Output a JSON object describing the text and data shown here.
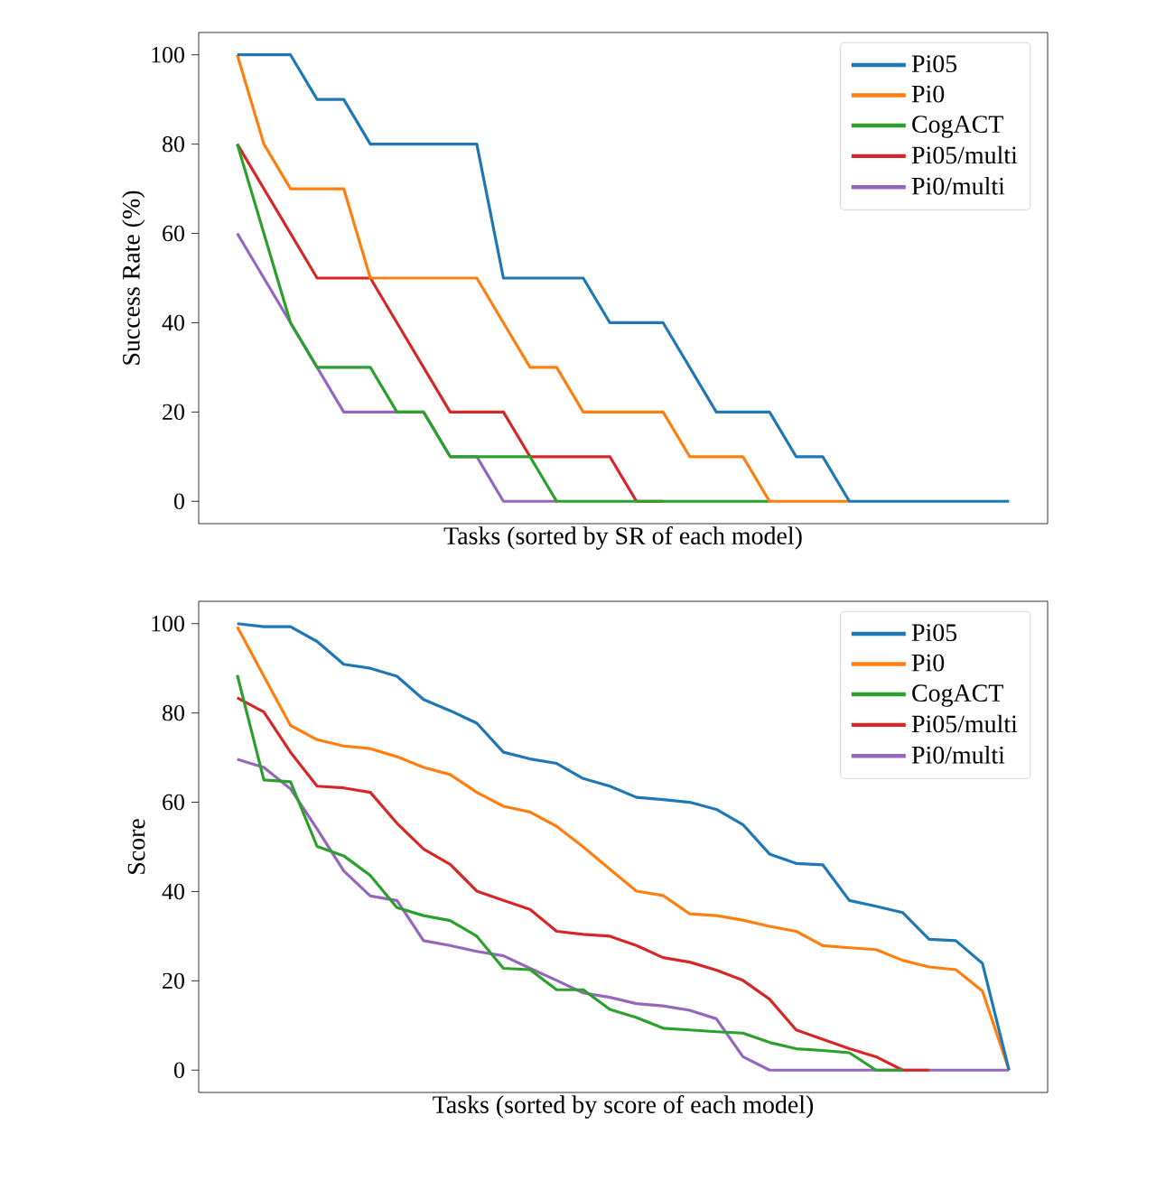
{
  "chart_data": [
    {
      "type": "line",
      "xlabel": "Tasks (sorted by SR of each model)",
      "ylabel": "Success Rate (%)",
      "categories": [
        null,
        null,
        null,
        null,
        null,
        null,
        null,
        null,
        null,
        null,
        null,
        null,
        null,
        null,
        null,
        null,
        null,
        null,
        null,
        null,
        null,
        null,
        null,
        null,
        null,
        null,
        null,
        null,
        null,
        null
      ],
      "ylim": [
        -5,
        105
      ],
      "yticks": [
        0,
        20,
        40,
        60,
        80,
        100
      ],
      "tick_labels": "y",
      "legend": "top right",
      "series": [
        {
          "name": "Pi05",
          "color": "#1f77b4",
          "values": [
            100,
            100,
            100,
            90,
            90,
            80,
            80,
            80,
            80,
            80,
            50,
            50,
            50,
            50,
            40,
            40,
            40,
            30,
            20,
            20,
            20,
            10,
            10,
            0,
            0,
            0,
            0,
            0,
            0,
            0
          ]
        },
        {
          "name": "Pi0",
          "color": "#ff7f0e",
          "values": [
            100,
            80,
            70,
            70,
            70,
            50,
            50,
            50,
            50,
            50,
            40,
            30,
            30,
            20,
            20,
            20,
            20,
            10,
            10,
            10,
            0,
            0,
            0,
            0,
            null,
            null,
            null,
            null,
            null,
            null
          ]
        },
        {
          "name": "CogACT",
          "color": "#2ca02c",
          "values": [
            80,
            60,
            40,
            30,
            30,
            30,
            20,
            20,
            10,
            10,
            10,
            10,
            0,
            0,
            0,
            0,
            0,
            0,
            0,
            0,
            0,
            null,
            null,
            null,
            null,
            null,
            null,
            null,
            null,
            null
          ]
        },
        {
          "name": "Pi05/multi",
          "color": "#d62728",
          "values": [
            80,
            70,
            60,
            50,
            50,
            50,
            40,
            30,
            20,
            20,
            20,
            10,
            10,
            10,
            10,
            0,
            0,
            null,
            null,
            null,
            null,
            null,
            null,
            null,
            null,
            null,
            null,
            null,
            null,
            null
          ]
        },
        {
          "name": "Pi0/multi",
          "color": "#9467bd",
          "values": [
            60,
            50,
            40,
            30,
            20,
            20,
            20,
            20,
            10,
            10,
            0,
            0,
            0,
            null,
            null,
            null,
            null,
            null,
            null,
            null,
            null,
            null,
            null,
            null,
            null,
            null,
            null,
            null,
            null,
            null
          ]
        }
      ]
    },
    {
      "type": "line",
      "xlabel": "Tasks (sorted by score of each model)",
      "ylabel": "Score",
      "categories": [
        null,
        null,
        null,
        null,
        null,
        null,
        null,
        null,
        null,
        null,
        null,
        null,
        null,
        null,
        null,
        null,
        null,
        null,
        null,
        null,
        null,
        null,
        null,
        null,
        null,
        null,
        null,
        null,
        null,
        null
      ],
      "ylim": [
        -5,
        105
      ],
      "yticks": [
        0,
        20,
        40,
        60,
        80,
        100
      ],
      "tick_labels": "y",
      "legend": "top right",
      "series": [
        {
          "name": "Pi05",
          "color": "#1f77b4",
          "values": [
            100,
            99.3,
            99.3,
            96,
            90.9,
            90,
            88.2,
            83,
            80.5,
            77.7,
            71.2,
            69.7,
            68.7,
            65.3,
            63.6,
            61.1,
            60.6,
            60,
            58.4,
            55,
            48.4,
            46.3,
            46,
            38,
            36.7,
            35.3,
            29.3,
            29,
            23.9,
            0
          ]
        },
        {
          "name": "Pi0",
          "color": "#ff7f0e",
          "values": [
            99.3,
            88.2,
            77.2,
            74,
            72.6,
            72,
            70.2,
            67.8,
            66.2,
            62.2,
            59.1,
            57.8,
            54.6,
            50,
            45,
            40.1,
            39.1,
            35,
            34.6,
            33.6,
            32.2,
            31.1,
            27.9,
            27.4,
            27,
            24.6,
            23.1,
            22.5,
            17.7,
            0
          ]
        },
        {
          "name": "CogACT",
          "color": "#2ca02c",
          "values": [
            88.5,
            65,
            64.6,
            50.1,
            48,
            43.6,
            36.4,
            34.6,
            33.5,
            30,
            22.8,
            22.5,
            18,
            18,
            13.6,
            11.8,
            9.4,
            9,
            8.6,
            8.3,
            6.2,
            4.8,
            4.4,
            3.9,
            0,
            0,
            null,
            null,
            null,
            null
          ]
        },
        {
          "name": "Pi05/multi",
          "color": "#d62728",
          "values": [
            83.4,
            80.2,
            71.2,
            63.6,
            63.2,
            62.2,
            55.3,
            49.5,
            46.1,
            40.1,
            38,
            36,
            31.1,
            30.4,
            30,
            27.9,
            25.2,
            24.2,
            22.4,
            20.1,
            15.9,
            9,
            6.9,
            4.8,
            3,
            0,
            0,
            null,
            null,
            null
          ]
        },
        {
          "name": "Pi0/multi",
          "color": "#9467bd",
          "values": [
            69.6,
            67.8,
            63,
            54,
            44.6,
            39,
            38,
            29,
            27.9,
            26.6,
            25.6,
            22.8,
            20.1,
            17.3,
            16.3,
            14.9,
            14.4,
            13.4,
            11.5,
            3,
            0,
            0,
            0,
            0,
            0,
            0,
            0,
            0,
            0,
            0
          ]
        }
      ]
    }
  ]
}
